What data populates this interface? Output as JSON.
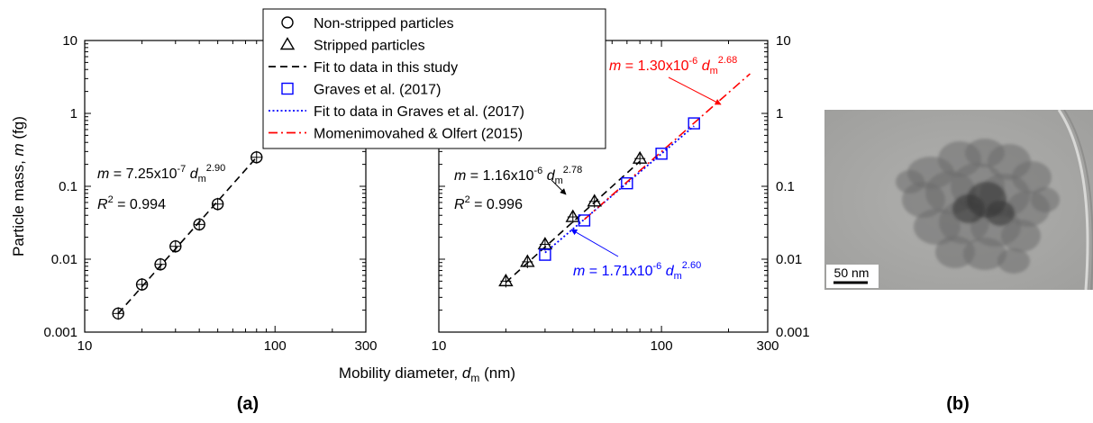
{
  "chart_data": [
    {
      "type": "scatter",
      "panel_label": "(a)",
      "xscale": "log",
      "yscale": "log",
      "xlim": [
        10,
        300
      ],
      "ylim": [
        0.001,
        10
      ],
      "x_ticks": [
        "10",
        "100",
        "300"
      ],
      "y_ticks": [
        "0.001",
        "0.01",
        "0.1",
        "1",
        "10"
      ],
      "ylabel_parts": [
        "Particle mass, ",
        "m",
        " (fg)"
      ],
      "series": [
        {
          "name": "Non-stripped particles",
          "marker": "circle",
          "color": "#000000",
          "x": [
            15,
            20,
            25,
            30,
            40,
            50,
            80
          ],
          "y": [
            0.0018,
            0.0045,
            0.0085,
            0.015,
            0.03,
            0.057,
            0.25
          ]
        },
        {
          "name": "Fit to data in this study",
          "line": "dashed",
          "color": "#000000",
          "x": [
            15,
            80
          ],
          "y": [
            0.0018,
            0.25
          ]
        }
      ],
      "annotations": [
        {
          "parts": [
            "m",
            " = 7.25x10",
            "-7",
            " d",
            "m",
            "2.90"
          ]
        },
        {
          "parts": [
            "R",
            "2",
            " = 0.994"
          ]
        }
      ]
    },
    {
      "type": "scatter",
      "xscale": "log",
      "yscale": "log",
      "xlim": [
        10,
        300
      ],
      "ylim": [
        0.001,
        10
      ],
      "x_ticks": [
        "10",
        "100",
        "300"
      ],
      "y_ticks": [
        "0.001",
        "0.01",
        "0.1",
        "1",
        "10"
      ],
      "series": [
        {
          "name": "Stripped particles",
          "marker": "triangle",
          "color": "#000000",
          "x": [
            20,
            25,
            30,
            40,
            50,
            80
          ],
          "y": [
            0.005,
            0.0092,
            0.016,
            0.038,
            0.062,
            0.24
          ]
        },
        {
          "name": "Fit to data in this study",
          "line": "dashed",
          "color": "#000000",
          "x": [
            20,
            80
          ],
          "y": [
            0.0048,
            0.22
          ]
        },
        {
          "name": "Graves et al. (2017)",
          "marker": "square",
          "color": "#0000ff",
          "x": [
            30,
            45,
            70,
            100,
            140
          ],
          "y": [
            0.0115,
            0.034,
            0.11,
            0.28,
            0.73
          ]
        },
        {
          "name": "Fit to data in Graves et al. (2017)",
          "line": "dotted",
          "color": "#0000ff",
          "x": [
            30,
            140
          ],
          "y": [
            0.0123,
            0.67
          ]
        },
        {
          "name": "Momenimovahed & Olfert (2015)",
          "line": "dashdot",
          "color": "#ff0000",
          "x": [
            45,
            250
          ],
          "y": [
            0.035,
            3.5
          ]
        }
      ],
      "annotations": [
        {
          "color": "#000000",
          "parts": [
            "m",
            " = 1.16x10",
            "-6",
            " d",
            "m",
            "2.78"
          ]
        },
        {
          "color": "#000000",
          "parts": [
            "R",
            "2",
            " = 0.996"
          ]
        },
        {
          "color": "#ff0000",
          "parts": [
            "m",
            " = 1.30x10",
            "-6",
            " d",
            "m",
            "2.68"
          ]
        },
        {
          "color": "#0000ff",
          "parts": [
            "m",
            " = 1.71x10",
            "-6",
            " d",
            "m",
            "2.60"
          ]
        }
      ]
    }
  ],
  "legend": [
    {
      "label": "Non-stripped particles",
      "symbol": "circle",
      "color": "#000000"
    },
    {
      "label": "Stripped particles",
      "symbol": "triangle",
      "color": "#000000"
    },
    {
      "label": "Fit to data in this study",
      "symbol": "dashed",
      "color": "#000000"
    },
    {
      "label": "Graves et al. (2017)",
      "symbol": "square",
      "color": "#0000ff"
    },
    {
      "label": "Fit to data in Graves et al. (2017)",
      "symbol": "dotted",
      "color": "#0000ff"
    },
    {
      "label": "Momenimovahed & Olfert (2015)",
      "symbol": "dashdot",
      "color": "#ff0000"
    }
  ],
  "xlabel_parts": [
    "Mobility diameter, ",
    "d",
    "m",
    " (nm)"
  ],
  "panel_labels": [
    "(a)",
    "(b)"
  ],
  "tem_image": {
    "scale_bar_label": "50 nm"
  }
}
